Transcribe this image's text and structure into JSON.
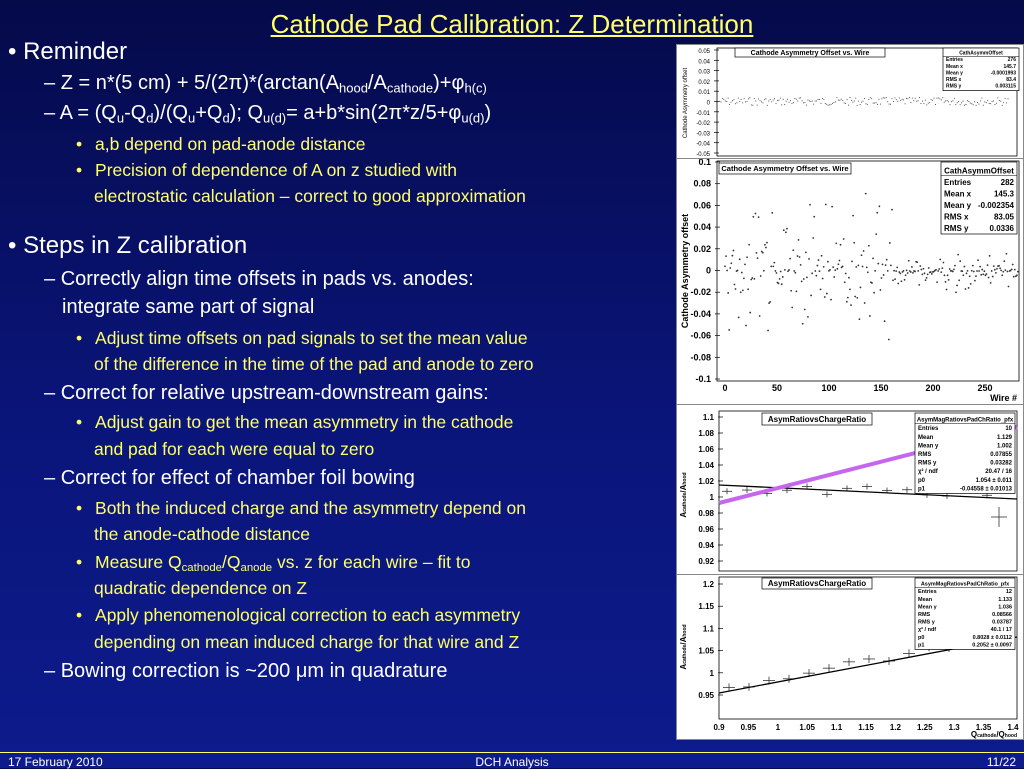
{
  "slide": {
    "title": "Cathode Pad Calibration: Z Determination",
    "bullet_char": "•",
    "dash_char": "–",
    "sub_bullet_char": "•",
    "reminder": "Reminder",
    "z_eq": {
      "p1": "Z = n*(5 cm) + 5/(2",
      "pi": "π",
      "p2": ")*(arctan(A",
      "s1": "hood",
      "p3": "/A",
      "s2": "cathode",
      "p4": ")+",
      "phi": "φ",
      "s3": "h(c)",
      "p5": ")"
    },
    "a_eq": {
      "p1": "A = (Q",
      "s1": "u",
      "p2": "-Q",
      "s2": "d",
      "p3": ")/(Q",
      "s3": "u",
      "p4": "+Q",
      "s4": "d",
      "p5": "); Q",
      "s5": "u(d)",
      "p6": "= a+b*sin(2",
      "pi": "π",
      "p7": "*z/5+",
      "phi": "φ",
      "s6": "u(d)",
      "p8": ")"
    },
    "ab_depend": "a,b depend on pad-anode distance",
    "precision_l1": "Precision of dependence of A on z studied with",
    "precision_l2": "electrostatic calculation – correct to good approximation",
    "steps": "Steps in Z calibration",
    "align_l1": "Correctly align time offsets in pads vs. anodes:",
    "align_l2": "integrate same part of signal",
    "adjust_time_l1": "Adjust time offsets on pad signals to set the mean value",
    "adjust_time_l2": "of the difference in the time of the pad and anode to zero",
    "gains": "Correct for relative upstream-downstream gains:",
    "adjust_gain_l1": "Adjust gain to get the mean asymmetry in the cathode",
    "adjust_gain_l2": "and pad for each were equal to zero",
    "bowing": "Correct for effect of chamber foil bowing",
    "induced_l1": "Both the induced charge and the asymmetry depend on",
    "induced_l2": "the anode-cathode distance",
    "measure": {
      "p1": "Measure Q",
      "s1": "cathode",
      "p2": "/Q",
      "s2": "anode",
      "p3": " vs. z for each wire – fit to"
    },
    "measure_l2": "quadratic dependence on Z",
    "apply_l1": "Apply phenomenological correction to each asymmetry",
    "apply_l2": "depending on mean induced charge for that wire and Z",
    "bowing_corr": {
      "p1": "Bowing correction is ~200 ",
      "mu": "μ",
      "p2": "m in quadrature"
    }
  },
  "footer": {
    "date": "17 February 2010",
    "center": "DCH Analysis",
    "page": "11/22"
  },
  "plot1": {
    "hist_title": "Cathode Asymmetry Offset vs. Wire",
    "ylabel": "Cathode Asymmetry offset",
    "yticks": [
      "0.05",
      "0.04",
      "0.03",
      "0.02",
      "0.01",
      "0",
      "-0.01",
      "-0.02",
      "-0.03",
      "-0.04",
      "-0.05"
    ],
    "stats_title": "CathAsymmOffset",
    "stats": [
      [
        "Entries",
        "276"
      ],
      [
        "Mean x",
        "145.7"
      ],
      [
        "Mean y",
        "-0.0001993"
      ],
      [
        "RMS x",
        "83.4"
      ],
      [
        "RMS y",
        "0.003115"
      ]
    ]
  },
  "plot2": {
    "hist_title": "Cathode Asymmetry Offset vs. Wire",
    "ylabel": "Cathode Asymmetry offset",
    "xlabel": "Wire #",
    "yticks": [
      "0.1",
      "0.08",
      "0.06",
      "0.04",
      "0.02",
      "0",
      "-0.02",
      "-0.04",
      "-0.06",
      "-0.08",
      "-0.1"
    ],
    "xticks": [
      "0",
      "50",
      "100",
      "150",
      "200",
      "250"
    ],
    "stats_title": "CathAsymmOffset",
    "stats": [
      [
        "Entries",
        "282"
      ],
      [
        "Mean x",
        "145.3"
      ],
      [
        "Mean y",
        "-0.002354"
      ],
      [
        "RMS x",
        "83.05"
      ],
      [
        "RMS y",
        "0.0336"
      ]
    ]
  },
  "plot3": {
    "hist_title": "AsymRatiovsChargeRatio",
    "ylabel_main": "A",
    "ylabel_sub1": "cathode",
    "ylabel_mid": "/A",
    "ylabel_sub2": "hood",
    "yticks": [
      "1.1",
      "1.08",
      "1.06",
      "1.04",
      "1.02",
      "1",
      "0.98",
      "0.96",
      "0.94",
      "0.92"
    ],
    "stats_title": "AsymMagRatiovsPadChRatio_pfx",
    "stats": [
      [
        "Entries",
        "10"
      ],
      [
        "Mean",
        "1.129"
      ],
      [
        "Mean y",
        "1.002"
      ],
      [
        "RMS",
        "0.07855"
      ],
      [
        "RMS y",
        "0.03282"
      ],
      [
        "χ² / ndf",
        "20.47 / 16"
      ],
      [
        "p0",
        "1.054 ± 0.011"
      ],
      [
        "p1",
        "-0.04558 ± 0.01013"
      ]
    ]
  },
  "plot4": {
    "hist_title": "AsymRatiovsChargeRatio",
    "ylabel_main": "A",
    "ylabel_sub1": "cathode",
    "ylabel_mid": "/A",
    "ylabel_sub2": "hood",
    "xlabel_main": "Q",
    "xlabel_sub1": "cathode",
    "xlabel_mid": "/Q",
    "xlabel_sub2": "hood",
    "yticks": [
      "1.2",
      "1.15",
      "1.1",
      "1.05",
      "1",
      "0.95"
    ],
    "xticks": [
      "0.9",
      "0.95",
      "1",
      "1.05",
      "1.1",
      "1.15",
      "1.2",
      "1.25",
      "1.3",
      "1.35",
      "1.4"
    ],
    "stats_title": "AsymMagRatiovsPadChRatio_pfx",
    "stats": [
      [
        "Entries",
        "12"
      ],
      [
        "Mean",
        "1.133"
      ],
      [
        "Mean y",
        "1.036"
      ],
      [
        "RMS",
        "0.08566"
      ],
      [
        "RMS y",
        "0.03787"
      ],
      [
        "χ² / ndf",
        "40.1 / 17"
      ],
      [
        "p0",
        "0.8028 ± 0.0112"
      ],
      [
        "p1",
        "0.2052 ± 0.0097"
      ]
    ]
  }
}
